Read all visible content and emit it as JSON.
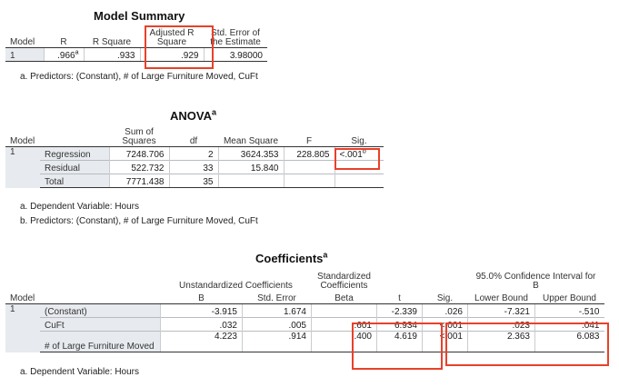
{
  "model_summary": {
    "title": "Model Summary",
    "headers": {
      "model": "Model",
      "r": "R",
      "r_square": "R Square",
      "adj_r_square_1": "Adjusted R",
      "adj_r_square_2": "Square",
      "std_error_1": "Std. Error of",
      "std_error_2": "the Estimate"
    },
    "row": {
      "model": "1",
      "r": ".966",
      "r_sup": "a",
      "r_square": ".933",
      "adj_r_square": ".929",
      "std_error": "3.98000"
    },
    "footnote": "a. Predictors: (Constant), # of Large Furniture Moved, CuFt"
  },
  "anova": {
    "title": "ANOVA",
    "title_sup": "a",
    "headers": {
      "model": "Model",
      "sum_sq_1": "Sum of",
      "sum_sq_2": "Squares",
      "df": "df",
      "mean_sq": "Mean Square",
      "f": "F",
      "sig": "Sig."
    },
    "model_num": "1",
    "rows": [
      {
        "label": "Regression",
        "sum_sq": "7248.706",
        "df": "2",
        "mean_sq": "3624.353",
        "f": "228.805",
        "sig": "<.001",
        "sig_sup": "b"
      },
      {
        "label": "Residual",
        "sum_sq": "522.732",
        "df": "33",
        "mean_sq": "15.840",
        "f": "",
        "sig": ""
      },
      {
        "label": "Total",
        "sum_sq": "7771.438",
        "df": "35",
        "mean_sq": "",
        "f": "",
        "sig": ""
      }
    ],
    "footnotes": [
      "a. Dependent Variable: Hours",
      "b. Predictors: (Constant), # of Large Furniture Moved, CuFt"
    ]
  },
  "coefficients": {
    "title": "Coefficients",
    "title_sup": "a",
    "headers": {
      "unstd": "Unstandardized Coefficients",
      "std_1": "Standardized",
      "std_2": "Coefficients",
      "ci_1": "95.0% Confidence Interval for",
      "ci_2": "B",
      "model": "Model",
      "b": "B",
      "std_error": "Std. Error",
      "beta": "Beta",
      "t": "t",
      "sig": "Sig.",
      "lower": "Lower Bound",
      "upper": "Upper Bound"
    },
    "model_num": "1",
    "rows": [
      {
        "label": "(Constant)",
        "b": "-3.915",
        "se": "1.674",
        "beta": "",
        "t": "-2.339",
        "sig": ".026",
        "lower": "-7.321",
        "upper": "-.510"
      },
      {
        "label": "CuFt",
        "b": ".032",
        "se": ".005",
        "beta": ".601",
        "t": "6.934",
        "sig": "<.001",
        "lower": ".023",
        "upper": ".041"
      },
      {
        "label": "# of Large Furniture Moved",
        "b": "4.223",
        "se": ".914",
        "beta": ".400",
        "t": "4.619",
        "sig": "<.001",
        "lower": "2.363",
        "upper": "6.083"
      }
    ],
    "footnote": "a. Dependent Variable: Hours"
  },
  "highlight_color": "#e8412a"
}
